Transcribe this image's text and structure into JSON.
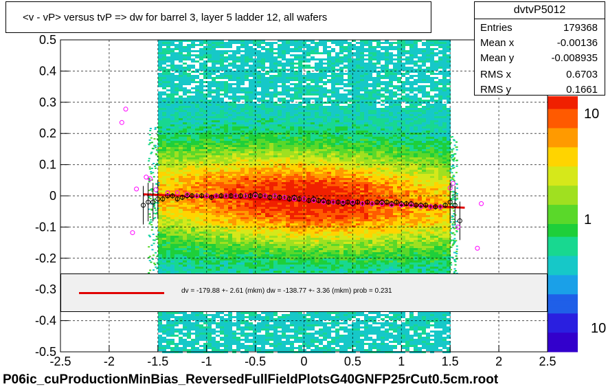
{
  "header": {
    "title": "<v - vP>       versus  tvP =>  dw for barrel 3, layer 5 ladder 12, all wafers"
  },
  "stats": {
    "name": "dvtvP5012",
    "rows": [
      {
        "label": "Entries",
        "value": "179368"
      },
      {
        "label": "Mean x",
        "value": "-0.00136"
      },
      {
        "label": "Mean y",
        "value": "-0.008935"
      },
      {
        "label": "RMS x",
        "value": "0.6703"
      },
      {
        "label": "RMS y",
        "value": "0.1661"
      }
    ]
  },
  "legend": {
    "text": "dv = -179.88 +-  2.61 (mkm) dw = -138.77 +-  3.36 (mkm) prob = 0.231",
    "line_color": "#e00000"
  },
  "footer": {
    "text": "P06ic_cuProductionMinBias_ReversedFullFieldPlotsG40GNFP25rCut0.5cm.root"
  },
  "chart_data": {
    "type": "heatmap",
    "xlim": [
      -2.5,
      2.5
    ],
    "ylim": [
      -0.5,
      0.5
    ],
    "x_ticks": [
      "-2.5",
      "-2",
      "-1.5",
      "-1",
      "-0.5",
      "0",
      "0.5",
      "1",
      "1.5",
      "2",
      "2.5"
    ],
    "y_ticks": [
      "-0.5",
      "-0.4",
      "-0.3",
      "-0.2",
      "-0.1",
      "0",
      "0.1",
      "0.2",
      "0.3",
      "0.4",
      "0.5"
    ],
    "colorbar_ticks": [
      "10",
      "1",
      "10"
    ],
    "grid": true,
    "log_z": true,
    "profile_means": {
      "color": "#000000",
      "x": [
        -1.65,
        -1.6,
        -1.55,
        -1.5,
        -1.45,
        -1.4,
        -1.35,
        -1.3,
        -1.25,
        -1.2,
        -1.15,
        -1.1,
        -1.05,
        -1.0,
        -0.95,
        -0.9,
        -0.85,
        -0.8,
        -0.75,
        -0.7,
        -0.65,
        -0.6,
        -0.55,
        -0.5,
        -0.45,
        -0.4,
        -0.35,
        -0.3,
        -0.25,
        -0.2,
        -0.15,
        -0.1,
        -0.05,
        0.0,
        0.05,
        0.1,
        0.15,
        0.2,
        0.25,
        0.3,
        0.35,
        0.4,
        0.45,
        0.5,
        0.55,
        0.6,
        0.65,
        0.7,
        0.75,
        0.8,
        0.85,
        0.9,
        0.95,
        1.0,
        1.05,
        1.1,
        1.15,
        1.2,
        1.25,
        1.3,
        1.35,
        1.4,
        1.45,
        1.5,
        1.55,
        1.6
      ],
      "y": [
        -0.03,
        -0.02,
        -0.02,
        -0.01,
        -0.01,
        0.0,
        0.0,
        -0.01,
        -0.005,
        0.0,
        0.0,
        0.0,
        0.0,
        0.0,
        -0.005,
        0.0,
        0.0,
        0.0,
        0.0,
        0.0,
        0.0,
        0.0,
        0.0,
        0.005,
        0.0,
        0.0,
        -0.005,
        0.0,
        -0.005,
        -0.005,
        -0.01,
        -0.005,
        -0.01,
        -0.01,
        -0.015,
        -0.01,
        -0.015,
        -0.015,
        -0.02,
        -0.02,
        -0.02,
        -0.025,
        -0.02,
        -0.025,
        -0.02,
        -0.025,
        -0.02,
        -0.025,
        -0.02,
        -0.02,
        -0.02,
        -0.025,
        -0.02,
        -0.025,
        -0.025,
        -0.025,
        -0.03,
        -0.03,
        -0.03,
        -0.035,
        -0.035,
        -0.035,
        -0.03,
        -0.02,
        -0.03,
        -0.08
      ]
    },
    "profile_peaks": {
      "color": "#ff00ff",
      "x": [
        -1.87,
        -1.83,
        -1.76,
        -1.72,
        -1.62,
        -1.58,
        -1.52,
        -1.4,
        -1.3,
        -1.2,
        -1.1,
        -1.0,
        -0.9,
        -0.8,
        -0.7,
        -0.6,
        -0.5,
        -0.4,
        -0.3,
        -0.2,
        -0.1,
        0.0,
        0.1,
        0.2,
        0.3,
        0.4,
        0.5,
        0.6,
        0.7,
        0.8,
        0.9,
        1.0,
        1.1,
        1.2,
        1.3,
        1.4,
        1.5,
        1.53,
        1.58,
        1.78,
        1.82
      ],
      "y": [
        0.235,
        0.278,
        -0.118,
        0.022,
        0.06,
        0.055,
        0.02,
        0.01,
        0.01,
        0.005,
        0.0,
        0.0,
        0.0,
        0.0,
        0.0,
        0.0,
        0.0,
        0.0,
        0.0,
        -0.005,
        -0.01,
        -0.01,
        -0.015,
        -0.02,
        -0.02,
        -0.02,
        -0.02,
        -0.025,
        -0.025,
        -0.025,
        -0.03,
        -0.03,
        -0.03,
        -0.035,
        -0.035,
        -0.035,
        0.025,
        0.04,
        -0.1,
        -0.168,
        -0.025
      ]
    },
    "fit_line": {
      "color": "#e00000",
      "x": [
        -1.65,
        1.65
      ],
      "y": [
        0.005,
        -0.038
      ]
    }
  }
}
